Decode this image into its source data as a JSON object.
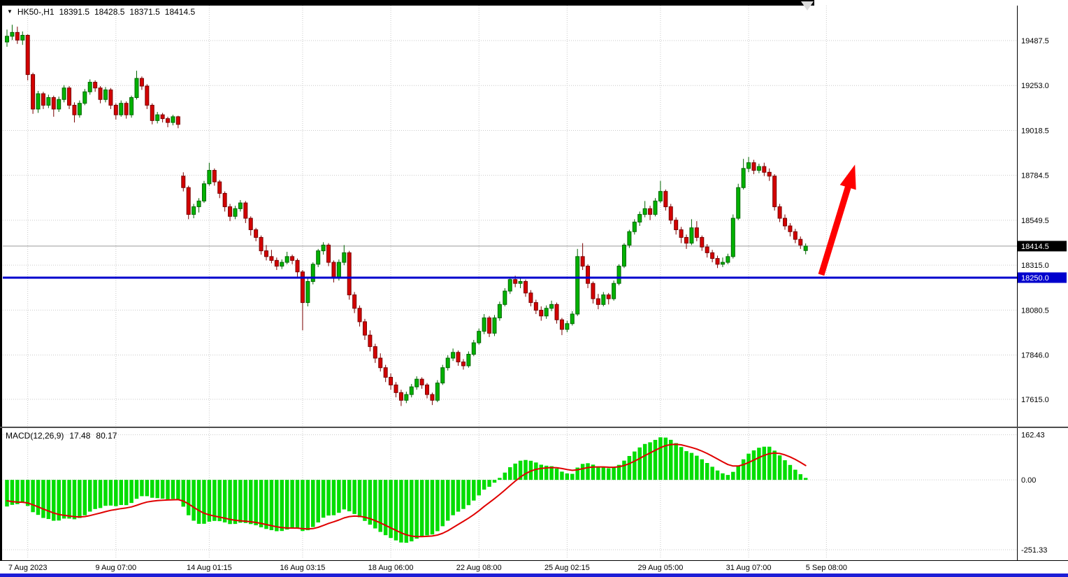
{
  "window": {
    "bottom_edge_color": "#1d1dd6",
    "top_bar_color": "#000000"
  },
  "icons": {
    "symbol_marker": "▼",
    "shift_marker": "triangle-down"
  },
  "header": {
    "symbol_period": "HK50-,H1",
    "open": "18391.5",
    "high": "18428.5",
    "low": "18371.5",
    "close": "18414.5"
  },
  "macd_header": {
    "name": "MACD(12,26,9)",
    "main_value": "17.48",
    "signal_value": "80.17"
  },
  "chart_data": [
    {
      "type": "candlestick",
      "symbol": "HK50-",
      "timeframe": "H1",
      "ylim": [
        17476,
        19670
      ],
      "y_ticks": [
        19487.5,
        19253.0,
        19018.5,
        18784.5,
        18549.5,
        18315.0,
        18080.5,
        17846.0,
        17615.0
      ],
      "current_price": 18414.5,
      "support_line": {
        "price": 18250.0,
        "color": "#0000cd",
        "width": 3
      },
      "x_ticks": [
        {
          "label": "7 Aug 2023",
          "index": 4
        },
        {
          "label": "9 Aug 07:00",
          "index": 21
        },
        {
          "label": "14 Aug 01:15",
          "index": 39
        },
        {
          "label": "16 Aug 03:15",
          "index": 57
        },
        {
          "label": "18 Aug 06:00",
          "index": 74
        },
        {
          "label": "22 Aug 08:00",
          "index": 91
        },
        {
          "label": "25 Aug 02:15",
          "index": 108
        },
        {
          "label": "29 Aug 05:00",
          "index": 126
        },
        {
          "label": "31 Aug 07:00",
          "index": 143
        },
        {
          "label": "5 Sep 08:00",
          "index": 158
        }
      ],
      "colors": {
        "up_fill": "#00b200",
        "up_stroke": "#006600",
        "down_fill": "#d40000",
        "down_stroke": "#7a0000",
        "grid": "#c9c9c9",
        "current_price_line": "#9a9a9a",
        "current_price_box": "#000000",
        "axis_text": "#000000"
      },
      "arrow_annotation": {
        "color": "#fe0000",
        "from_index": 157,
        "from_price": 18265,
        "to_index": 163.5,
        "to_price": 18840
      },
      "ohlc": [
        [
          19480,
          19545,
          19455,
          19510
        ],
        [
          19510,
          19570,
          19490,
          19530
        ],
        [
          19530,
          19560,
          19470,
          19490
        ],
        [
          19490,
          19535,
          19465,
          19515
        ],
        [
          19515,
          19520,
          19280,
          19310
        ],
        [
          19310,
          19320,
          19105,
          19130
        ],
        [
          19130,
          19225,
          19110,
          19210
        ],
        [
          19210,
          19220,
          19130,
          19150
        ],
        [
          19150,
          19205,
          19135,
          19190
        ],
        [
          19190,
          19200,
          19090,
          19130
        ],
        [
          19130,
          19195,
          19115,
          19180
        ],
        [
          19180,
          19255,
          19165,
          19240
        ],
        [
          19240,
          19250,
          19130,
          19150
        ],
        [
          19150,
          19165,
          19060,
          19100
        ],
        [
          19100,
          19175,
          19085,
          19160
        ],
        [
          19160,
          19235,
          19150,
          19220
        ],
        [
          19220,
          19285,
          19205,
          19270
        ],
        [
          19270,
          19280,
          19220,
          19240
        ],
        [
          19240,
          19250,
          19160,
          19180
        ],
        [
          19180,
          19245,
          19165,
          19230
        ],
        [
          19230,
          19240,
          19130,
          19150
        ],
        [
          19150,
          19160,
          19075,
          19100
        ],
        [
          19100,
          19175,
          19090,
          19160
        ],
        [
          19160,
          19170,
          19080,
          19100
        ],
        [
          19100,
          19200,
          19085,
          19190
        ],
        [
          19190,
          19330,
          19180,
          19290
        ],
        [
          19290,
          19300,
          19230,
          19250
        ],
        [
          19250,
          19260,
          19130,
          19150
        ],
        [
          19150,
          19160,
          19050,
          19070
        ],
        [
          19070,
          19115,
          19055,
          19100
        ],
        [
          19100,
          19110,
          19060,
          19080
        ],
        [
          19080,
          19090,
          19035,
          19060
        ],
        [
          19060,
          19100,
          19045,
          19090
        ],
        [
          19090,
          19095,
          19030,
          19050
        ],
        [
          18780,
          18800,
          18700,
          18720
        ],
        [
          18720,
          18730,
          18555,
          18580
        ],
        [
          18580,
          18635,
          18560,
          18620
        ],
        [
          18620,
          18665,
          18590,
          18650
        ],
        [
          18650,
          18755,
          18640,
          18740
        ],
        [
          18740,
          18850,
          18730,
          18810
        ],
        [
          18810,
          18820,
          18730,
          18750
        ],
        [
          18750,
          18760,
          18665,
          18690
        ],
        [
          18690,
          18700,
          18595,
          18620
        ],
        [
          18620,
          18635,
          18545,
          18570
        ],
        [
          18570,
          18625,
          18555,
          18610
        ],
        [
          18610,
          18655,
          18595,
          18640
        ],
        [
          18640,
          18650,
          18535,
          18560
        ],
        [
          18560,
          18570,
          18470,
          18500
        ],
        [
          18500,
          18510,
          18440,
          18460
        ],
        [
          18460,
          18470,
          18370,
          18390
        ],
        [
          18390,
          18420,
          18340,
          18360
        ],
        [
          18360,
          18395,
          18325,
          18340
        ],
        [
          18340,
          18355,
          18290,
          18310
        ],
        [
          18310,
          18345,
          18295,
          18330
        ],
        [
          18330,
          18385,
          18320,
          18360
        ],
        [
          18360,
          18370,
          18320,
          18340
        ],
        [
          18340,
          18350,
          18255,
          18280
        ],
        [
          18280,
          18290,
          17975,
          18120
        ],
        [
          18120,
          18245,
          18100,
          18230
        ],
        [
          18230,
          18330,
          18215,
          18320
        ],
        [
          18320,
          18400,
          18305,
          18390
        ],
        [
          18390,
          18435,
          18370,
          18420
        ],
        [
          18420,
          18430,
          18310,
          18330
        ],
        [
          18330,
          18340,
          18225,
          18250
        ],
        [
          18250,
          18345,
          18235,
          18330
        ],
        [
          18330,
          18420,
          18315,
          18380
        ],
        [
          18380,
          18390,
          18135,
          18160
        ],
        [
          18160,
          18175,
          18065,
          18090
        ],
        [
          18090,
          18105,
          17995,
          18020
        ],
        [
          18020,
          18035,
          17925,
          17950
        ],
        [
          17950,
          17975,
          17865,
          17890
        ],
        [
          17890,
          17905,
          17805,
          17830
        ],
        [
          17830,
          17855,
          17760,
          17780
        ],
        [
          17780,
          17795,
          17705,
          17730
        ],
        [
          17730,
          17750,
          17665,
          17690
        ],
        [
          17690,
          17705,
          17625,
          17650
        ],
        [
          17650,
          17665,
          17580,
          17610
        ],
        [
          17610,
          17655,
          17595,
          17640
        ],
        [
          17640,
          17695,
          17625,
          17680
        ],
        [
          17680,
          17735,
          17665,
          17720
        ],
        [
          17720,
          17730,
          17670,
          17690
        ],
        [
          17690,
          17700,
          17620,
          17640
        ],
        [
          17640,
          17650,
          17585,
          17610
        ],
        [
          17610,
          17715,
          17600,
          17700
        ],
        [
          17700,
          17795,
          17690,
          17780
        ],
        [
          17780,
          17845,
          17765,
          17830
        ],
        [
          17830,
          17880,
          17815,
          17860
        ],
        [
          17860,
          17870,
          17790,
          17810
        ],
        [
          17810,
          17825,
          17770,
          17790
        ],
        [
          17790,
          17865,
          17780,
          17850
        ],
        [
          17850,
          17925,
          17840,
          17910
        ],
        [
          17910,
          17985,
          17900,
          17970
        ],
        [
          17970,
          18060,
          17955,
          18040
        ],
        [
          18040,
          18050,
          17940,
          17960
        ],
        [
          17960,
          18055,
          17945,
          18040
        ],
        [
          18040,
          18125,
          18025,
          18110
        ],
        [
          18110,
          18195,
          18100,
          18180
        ],
        [
          18180,
          18255,
          18165,
          18240
        ],
        [
          18240,
          18260,
          18200,
          18220
        ],
        [
          18220,
          18245,
          18195,
          18230
        ],
        [
          18230,
          18240,
          18150,
          18170
        ],
        [
          18170,
          18185,
          18100,
          18120
        ],
        [
          18120,
          18135,
          18060,
          18080
        ],
        [
          18080,
          18100,
          18025,
          18050
        ],
        [
          18050,
          18105,
          18035,
          18090
        ],
        [
          18090,
          18130,
          18075,
          18110
        ],
        [
          18110,
          18120,
          18010,
          18030
        ],
        [
          18030,
          18040,
          17950,
          17980
        ],
        [
          17980,
          18025,
          17965,
          18010
        ],
        [
          18010,
          18075,
          18000,
          18060
        ],
        [
          18060,
          18400,
          18050,
          18360
        ],
        [
          18360,
          18430,
          18290,
          18310
        ],
        [
          18310,
          18320,
          18195,
          18220
        ],
        [
          18220,
          18230,
          18115,
          18140
        ],
        [
          18140,
          18165,
          18085,
          18110
        ],
        [
          18110,
          18175,
          18100,
          18160
        ],
        [
          18160,
          18170,
          18110,
          18140
        ],
        [
          18140,
          18235,
          18130,
          18220
        ],
        [
          18220,
          18320,
          18210,
          18310
        ],
        [
          18310,
          18430,
          18300,
          18420
        ],
        [
          18420,
          18500,
          18405,
          18490
        ],
        [
          18490,
          18555,
          18475,
          18540
        ],
        [
          18540,
          18595,
          18520,
          18580
        ],
        [
          18580,
          18650,
          18565,
          18610
        ],
        [
          18610,
          18625,
          18550,
          18580
        ],
        [
          18580,
          18665,
          18570,
          18650
        ],
        [
          18650,
          18755,
          18640,
          18700
        ],
        [
          18700,
          18710,
          18600,
          18620
        ],
        [
          18620,
          18635,
          18530,
          18550
        ],
        [
          18550,
          18565,
          18475,
          18500
        ],
        [
          18500,
          18515,
          18430,
          18460
        ],
        [
          18460,
          18475,
          18400,
          18430
        ],
        [
          18430,
          18555,
          18420,
          18510
        ],
        [
          18510,
          18545,
          18440,
          18460
        ],
        [
          18460,
          18470,
          18390,
          18410
        ],
        [
          18410,
          18425,
          18355,
          18380
        ],
        [
          18380,
          18395,
          18330,
          18350
        ],
        [
          18350,
          18365,
          18300,
          18320
        ],
        [
          18320,
          18355,
          18305,
          18330
        ],
        [
          18330,
          18375,
          18320,
          18360
        ],
        [
          18360,
          18580,
          18350,
          18560
        ],
        [
          18560,
          18740,
          18550,
          18720
        ],
        [
          18720,
          18870,
          18710,
          18820
        ],
        [
          18820,
          18880,
          18800,
          18850
        ],
        [
          18850,
          18865,
          18790,
          18810
        ],
        [
          18810,
          18845,
          18795,
          18830
        ],
        [
          18830,
          18850,
          18780,
          18800
        ],
        [
          18800,
          18820,
          18755,
          18780
        ],
        [
          18780,
          18790,
          18600,
          18620
        ],
        [
          18620,
          18635,
          18540,
          18560
        ],
        [
          18560,
          18580,
          18500,
          18520
        ],
        [
          18520,
          18535,
          18465,
          18490
        ],
        [
          18490,
          18505,
          18430,
          18450
        ],
        [
          18450,
          18465,
          18400,
          18420
        ],
        [
          18391.5,
          18428.5,
          18371.5,
          18414.5
        ]
      ]
    },
    {
      "type": "macd",
      "label": "MACD(12,26,9)",
      "fast": 12,
      "slow": 26,
      "signal": 9,
      "last_main": 17.48,
      "last_signal": 80.17,
      "ylim": [
        -284,
        184
      ],
      "y_ticks": [
        162.43,
        0.0,
        -251.33
      ],
      "colors": {
        "histogram": "#00dd00",
        "signal_line": "#e00000"
      }
    }
  ]
}
